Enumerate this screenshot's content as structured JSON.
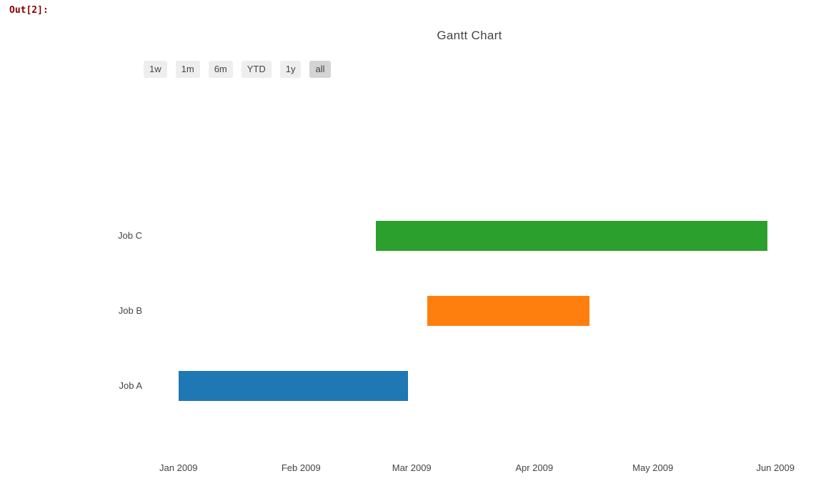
{
  "notebook": {
    "out_prompt": "Out[2]:"
  },
  "chart": {
    "range_selector": {
      "buttons": [
        {
          "label": "1w",
          "active": false
        },
        {
          "label": "1m",
          "active": false
        },
        {
          "label": "6m",
          "active": false
        },
        {
          "label": "YTD",
          "active": false
        },
        {
          "label": "1y",
          "active": false
        },
        {
          "label": "all",
          "active": true
        }
      ]
    },
    "colors": {
      "text": "#444444",
      "prompt_red": "#8b0000",
      "button_bg": "#eeeeee",
      "button_active_bg": "#d4d4d4",
      "background": "#ffffff"
    }
  },
  "chart_data": {
    "type": "bar",
    "subtype": "gantt",
    "title": "Gantt Chart",
    "tasks": [
      {
        "label": "Job A",
        "start": "2009-01-01",
        "finish": "2009-02-28",
        "color": "#1f77b4"
      },
      {
        "label": "Job B",
        "start": "2009-03-05",
        "finish": "2009-04-15",
        "color": "#ff7f0e"
      },
      {
        "label": "Job C",
        "start": "2009-02-20",
        "finish": "2009-05-30",
        "color": "#2ca02c"
      }
    ],
    "row_order_bottom_to_top": [
      "Job A",
      "Job B",
      "Job C"
    ],
    "x_axis": {
      "range": [
        "2008-12-23",
        "2009-06-10"
      ],
      "ticks": [
        {
          "date": "2009-01-01",
          "label": "Jan 2009"
        },
        {
          "date": "2009-02-01",
          "label": "Feb 2009"
        },
        {
          "date": "2009-03-01",
          "label": "Mar 2009"
        },
        {
          "date": "2009-04-01",
          "label": "Apr 2009"
        },
        {
          "date": "2009-05-01",
          "label": "May 2009"
        },
        {
          "date": "2009-06-01",
          "label": "Jun 2009"
        }
      ]
    },
    "y_axis_labels": [
      "Job C",
      "Job B",
      "Job A"
    ],
    "grid": false,
    "legend": false
  }
}
